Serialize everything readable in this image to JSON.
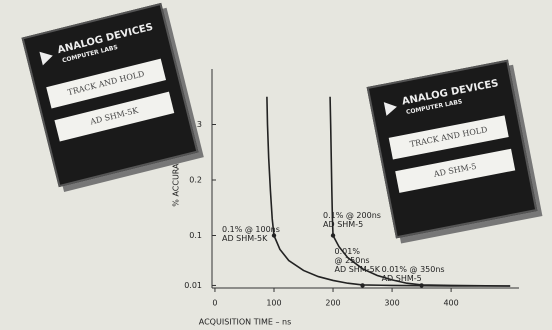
{
  "products": [
    {
      "brand": "ANALOG DEVICES",
      "division": "COMPUTER LABS",
      "function": "TRACK AND HOLD",
      "model": "AD SHM-5K"
    },
    {
      "brand": "ANALOG DEVICES",
      "division": "COMPUTER LABS",
      "function": "TRACK AND HOLD",
      "model": "AD SHM-5"
    }
  ],
  "chart_data": {
    "type": "line",
    "xlabel": "ACQUISITION TIME – ns",
    "ylabel": "% ACCURACY",
    "xlim": [
      -5,
      515
    ],
    "ylim": [
      0,
      0.4
    ],
    "xticks": [
      0,
      100,
      200,
      300,
      400
    ],
    "yticks": [
      0.01,
      0.1,
      0.2,
      0.3
    ],
    "color": "#222222",
    "series": [
      {
        "x": [
          88,
          89,
          91,
          94,
          97,
          100,
          110,
          125,
          150,
          175,
          200,
          225,
          250,
          300,
          400,
          500
        ],
        "values": [
          0.35,
          0.3,
          0.24,
          0.18,
          0.13,
          0.1,
          0.075,
          0.055,
          0.037,
          0.026,
          0.019,
          0.014,
          0.011,
          0.01,
          0.009,
          0.009
        ]
      },
      {
        "x": [
          195,
          196,
          197,
          198,
          199,
          200,
          210,
          225,
          250,
          275,
          300,
          325,
          350,
          400,
          500
        ],
        "values": [
          0.35,
          0.3,
          0.24,
          0.18,
          0.13,
          0.1,
          0.08,
          0.06,
          0.04,
          0.028,
          0.02,
          0.014,
          0.011,
          0.01,
          0.009
        ]
      }
    ],
    "annotations": [
      {
        "lines": [
          "0.1% @ 100ns",
          "AD SHM-5K"
        ],
        "x": 100,
        "y": 0.1
      },
      {
        "lines": [
          "0.01%",
          "@ 250ns",
          "AD SHM-5K"
        ],
        "x": 250,
        "y": 0.01
      },
      {
        "lines": [
          "0.1% @ 200ns",
          "AD SHM-5"
        ],
        "x": 200,
        "y": 0.1
      },
      {
        "lines": [
          "0.01% @ 350ns",
          "AD SHM-5"
        ],
        "x": 350,
        "y": 0.01
      }
    ]
  }
}
